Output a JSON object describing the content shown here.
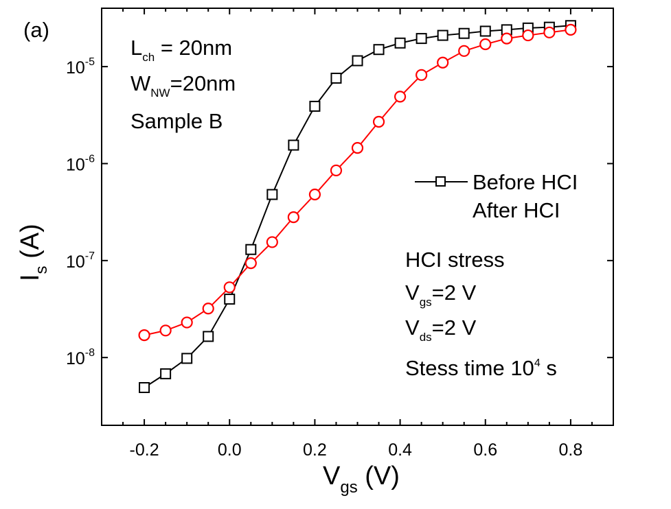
{
  "panel_label": "(a)",
  "params": {
    "l_main": "L",
    "l_sub": "ch",
    "l_value": " = 20nm",
    "w_main": "W",
    "w_sub": "NW",
    "w_value": "=20nm",
    "sample": "Sample B"
  },
  "stress": {
    "title": "HCI stress",
    "vgs_main": "V",
    "vgs_sub": "gs",
    "vgs_value": "=2 V",
    "vds_main": "V",
    "vds_sub": "ds",
    "vds_value": "=2 V",
    "time_prefix": "Stess time 10",
    "time_exp": "4",
    "time_suffix": " s"
  },
  "chart_data": {
    "type": "line",
    "xlabel_main": "V",
    "xlabel_sub": "gs",
    "xlabel_unit": " (V)",
    "ylabel_main": "I",
    "ylabel_sub": "s",
    "ylabel_unit": " (A)",
    "xlim": [
      -0.3,
      0.9
    ],
    "ylim": [
      2e-09,
      4e-05
    ],
    "yscale": "log",
    "x_ticks": [
      "-0.2",
      "0.0",
      "0.2",
      "0.4",
      "0.6",
      "0.8"
    ],
    "y_ticks": [
      {
        "base": "10",
        "exp": "-8",
        "value": 1e-08
      },
      {
        "base": "10",
        "exp": "-7",
        "value": 1e-07
      },
      {
        "base": "10",
        "exp": "-6",
        "value": 1e-06
      },
      {
        "base": "10",
        "exp": "-5",
        "value": 1e-05
      }
    ],
    "legend_position": "right",
    "x": [
      -0.2,
      -0.15,
      -0.1,
      -0.05,
      0.0,
      0.05,
      0.1,
      0.15,
      0.2,
      0.25,
      0.3,
      0.35,
      0.4,
      0.45,
      0.5,
      0.55,
      0.6,
      0.65,
      0.7,
      0.75,
      0.8
    ],
    "series": [
      {
        "name": "Before HCI",
        "color": "#000000",
        "marker": "square",
        "values": [
          4.9e-09,
          6.8e-09,
          9.8e-09,
          1.65e-08,
          4e-08,
          1.3e-07,
          4.8e-07,
          1.55e-06,
          3.9e-06,
          7.6e-06,
          1.15e-05,
          1.5e-05,
          1.75e-05,
          1.95e-05,
          2.1e-05,
          2.2e-05,
          2.32e-05,
          2.4e-05,
          2.5e-05,
          2.55e-05,
          2.65e-05
        ]
      },
      {
        "name": "After HCI",
        "color": "#ff0000",
        "marker": "circle",
        "values": [
          1.7e-08,
          1.9e-08,
          2.3e-08,
          3.2e-08,
          5.3e-08,
          9.4e-08,
          1.55e-07,
          2.8e-07,
          4.8e-07,
          8.5e-07,
          1.45e-06,
          2.7e-06,
          4.9e-06,
          8.2e-06,
          1.1e-05,
          1.45e-05,
          1.7e-05,
          1.95e-05,
          2.1e-05,
          2.25e-05,
          2.4e-05
        ]
      }
    ]
  }
}
